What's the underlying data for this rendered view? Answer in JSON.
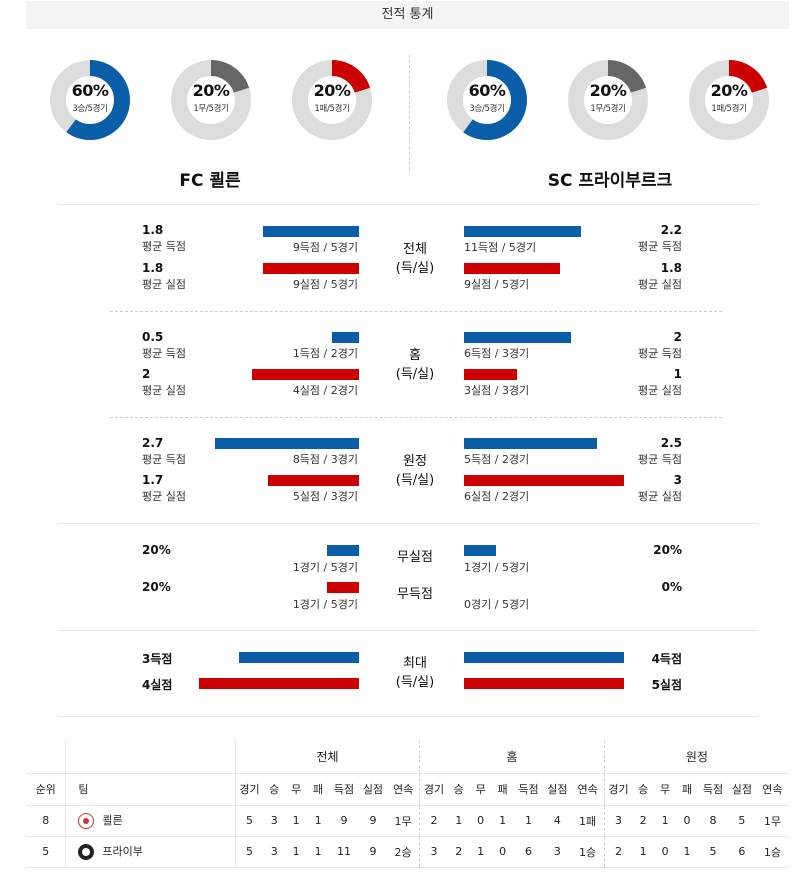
{
  "header": {
    "title": "전적 통계"
  },
  "colors": {
    "blue": "#0a5ea8",
    "red": "#cc0000",
    "gray": "#666666",
    "track": "#dcdcdc"
  },
  "teams": {
    "home": "FC 쾰른",
    "away": "SC 프라이부르크"
  },
  "donuts": {
    "home": [
      {
        "pct": "60%",
        "sub": "3승/5경기",
        "fraction": 0.6,
        "color": "#0a5ea8"
      },
      {
        "pct": "20%",
        "sub": "1무/5경기",
        "fraction": 0.2,
        "color": "#666666"
      },
      {
        "pct": "20%",
        "sub": "1패/5경기",
        "fraction": 0.2,
        "color": "#cc0000"
      }
    ],
    "away": [
      {
        "pct": "60%",
        "sub": "3승/5경기",
        "fraction": 0.6,
        "color": "#0a5ea8"
      },
      {
        "pct": "20%",
        "sub": "1무/5경기",
        "fraction": 0.2,
        "color": "#666666"
      },
      {
        "pct": "20%",
        "sub": "1패/5경기",
        "fraction": 0.2,
        "color": "#cc0000"
      }
    ]
  },
  "sections": {
    "overall": {
      "label1": "전체",
      "label2": "(득/실)",
      "home_scored": {
        "value": "1.8",
        "label": "평균 득점",
        "count": "9득점 / 5경기"
      },
      "home_conceded": {
        "value": "1.8",
        "label": "평균 실점",
        "count": "9실점 / 5경기"
      },
      "away_scored": {
        "value": "2.2",
        "label": "평균 득점",
        "count": "11득점 / 5경기"
      },
      "away_conceded": {
        "value": "1.8",
        "label": "평균 실점",
        "count": "9실점 / 5경기"
      }
    },
    "home": {
      "label1": "홈",
      "label2": "(득/실)",
      "home_scored": {
        "value": "0.5",
        "label": "평균 득점",
        "count": "1득점 / 2경기"
      },
      "home_conceded": {
        "value": "2",
        "label": "평균 실점",
        "count": "4실점 / 2경기"
      },
      "away_scored": {
        "value": "2",
        "label": "평균 득점",
        "count": "6득점 / 3경기"
      },
      "away_conceded": {
        "value": "1",
        "label": "평균 실점",
        "count": "3실점 / 3경기"
      }
    },
    "away": {
      "label1": "원정",
      "label2": "(득/실)",
      "home_scored": {
        "value": "2.7",
        "label": "평균 득점",
        "count": "8득점 / 3경기"
      },
      "home_conceded": {
        "value": "1.7",
        "label": "평균 실점",
        "count": "5실점 / 3경기"
      },
      "away_scored": {
        "value": "2.5",
        "label": "평균 득점",
        "count": "5득점 / 2경기"
      },
      "away_conceded": {
        "value": "3",
        "label": "평균 실점",
        "count": "6실점 / 2경기"
      }
    },
    "clean": {
      "clean_label": "무실점",
      "blank_label": "무득점",
      "home_clean": {
        "value": "20%",
        "count": "1경기 / 5경기"
      },
      "home_blank": {
        "value": "20%",
        "count": "1경기 / 5경기"
      },
      "away_clean": {
        "value": "20%",
        "count": "1경기 / 5경기"
      },
      "away_blank": {
        "value": "0%",
        "count": "0경기 / 5경기"
      }
    },
    "max": {
      "label1": "최대",
      "label2": "(득/실)",
      "home_scored": "3득점",
      "home_conceded": "4실점",
      "away_scored": "4득점",
      "away_conceded": "5실점"
    }
  },
  "standings": {
    "groups": [
      "전체",
      "홈",
      "원정"
    ],
    "rank_header": "순위",
    "team_header": "팀",
    "columns": [
      "경기",
      "승",
      "무",
      "패",
      "득점",
      "실점",
      "연속"
    ],
    "rows": [
      {
        "rank": "8",
        "team": "쾰른",
        "crest": "koln-crest-icon",
        "overall": [
          "5",
          "3",
          "1",
          "1",
          "9",
          "9",
          "1무"
        ],
        "home": [
          "2",
          "1",
          "0",
          "1",
          "1",
          "4",
          "1패"
        ],
        "away": [
          "3",
          "2",
          "1",
          "0",
          "8",
          "5",
          "1무"
        ]
      },
      {
        "rank": "5",
        "team": "프라이부",
        "crest": "freiburg-crest-icon",
        "overall": [
          "5",
          "3",
          "1",
          "1",
          "11",
          "9",
          "2승"
        ],
        "home": [
          "3",
          "2",
          "1",
          "0",
          "6",
          "3",
          "1승"
        ],
        "away": [
          "2",
          "1",
          "0",
          "1",
          "5",
          "6",
          "1승"
        ]
      }
    ]
  }
}
